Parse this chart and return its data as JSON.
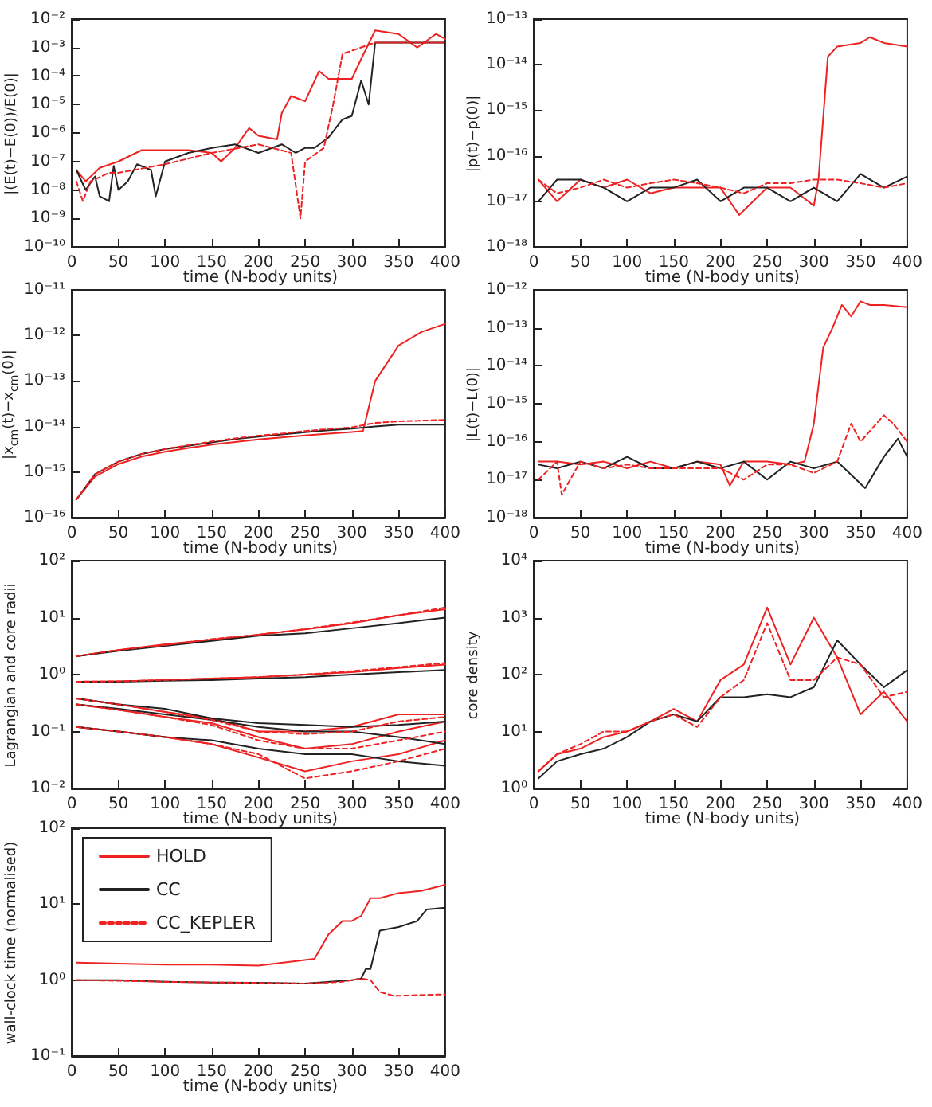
{
  "chart_data": [
    {
      "type": "line",
      "xlabel": "time (N-body units)",
      "ylabel": "|(E(t)−E(0))/E(0)|",
      "log": "y",
      "marker": "none",
      "xlim": [
        0,
        400
      ],
      "xticks": [
        0,
        50,
        100,
        150,
        200,
        250,
        300,
        350,
        400
      ],
      "ylim": [
        1e-10,
        0.01
      ],
      "yticks": [
        {
          "value": 1e-10,
          "label": "10⁻¹⁰"
        },
        {
          "value": 1e-09,
          "label": "10⁻⁹"
        },
        {
          "value": 1e-08,
          "label": "10⁻⁸"
        },
        {
          "value": 1e-07,
          "label": "10⁻⁷"
        },
        {
          "value": 1e-06,
          "label": "10⁻⁶"
        },
        {
          "value": 1e-05,
          "label": "10⁻⁵"
        },
        {
          "value": 0.0001,
          "label": "10⁻⁴"
        },
        {
          "value": 0.001,
          "label": "10⁻³"
        },
        {
          "value": 0.01,
          "label": "10⁻²"
        }
      ],
      "series": [
        {
          "color": "#ee2222",
          "line_style": "solid",
          "x": [
            5,
            15,
            30,
            50,
            75,
            100,
            125,
            150,
            160,
            175,
            190,
            200,
            220,
            225,
            235,
            250,
            265,
            275,
            300,
            310,
            325,
            350,
            370,
            390,
            400
          ],
          "values": [
            5e-08,
            2e-08,
            6e-08,
            1e-07,
            2.5e-07,
            2.5e-07,
            2.5e-07,
            2e-07,
            1e-07,
            3e-07,
            1.5e-06,
            8e-07,
            6e-07,
            5e-06,
            2e-05,
            1.3e-05,
            0.00015,
            8e-05,
            8e-05,
            0.0004,
            0.004,
            0.003,
            0.001,
            0.003,
            0.002
          ]
        },
        {
          "color": "#222222",
          "line_style": "solid",
          "x": [
            5,
            15,
            25,
            30,
            40,
            45,
            50,
            60,
            70,
            85,
            90,
            100,
            125,
            150,
            175,
            200,
            225,
            240,
            250,
            260,
            275,
            290,
            300,
            310,
            318,
            325,
            350,
            400
          ],
          "values": [
            5e-08,
            1e-08,
            3e-08,
            6e-09,
            4e-09,
            7e-08,
            1e-08,
            2e-08,
            8e-08,
            5e-08,
            6e-09,
            1e-07,
            2e-07,
            3e-07,
            4e-07,
            2e-07,
            4e-07,
            2e-07,
            3e-07,
            3e-07,
            7e-07,
            3e-06,
            4e-06,
            7e-05,
            1e-05,
            0.0015,
            0.0015,
            0.0015
          ]
        },
        {
          "color": "#ee2222",
          "line_style": "dashed",
          "x": [
            5,
            12,
            20,
            40,
            50,
            100,
            150,
            200,
            235,
            245,
            250,
            270,
            280,
            290,
            325,
            350,
            400
          ],
          "values": [
            2e-08,
            4e-09,
            2e-08,
            4e-08,
            4e-08,
            8e-08,
            2e-07,
            4e-07,
            2e-07,
            1e-09,
            1e-07,
            3e-07,
            1e-05,
            0.0006,
            0.0015,
            0.0015,
            0.0015
          ]
        }
      ]
    },
    {
      "type": "line",
      "xlabel": "time (N-body units)",
      "ylabel": "|p(t)−p(0)|",
      "log": "y",
      "marker": "none",
      "x": [
        5,
        25,
        50,
        75,
        100,
        125,
        150,
        175,
        200,
        225,
        250,
        275,
        300,
        325,
        350,
        375,
        400
      ],
      "xlim": [
        0,
        400
      ],
      "xticks": [
        0,
        50,
        100,
        150,
        200,
        250,
        300,
        350,
        400
      ],
      "ylim": [
        1e-18,
        1e-13
      ],
      "yticks": [
        {
          "value": 1e-18,
          "label": "10⁻¹⁸"
        },
        {
          "value": 1e-17,
          "label": "10⁻¹⁷"
        },
        {
          "value": 1e-16,
          "label": "10⁻¹⁶"
        },
        {
          "value": 1e-15,
          "label": "10⁻¹⁵"
        },
        {
          "value": 1e-14,
          "label": "10⁻¹⁴"
        },
        {
          "value": 1e-13,
          "label": "10⁻¹³"
        }
      ],
      "series": [
        {
          "color": "#ee2222",
          "line_style": "solid",
          "x": [
            5,
            25,
            50,
            75,
            100,
            125,
            150,
            175,
            200,
            220,
            250,
            275,
            300,
            305,
            315,
            325,
            350,
            360,
            375,
            400
          ],
          "values": [
            3e-17,
            1e-17,
            3e-17,
            2e-17,
            3e-17,
            1.5e-17,
            2e-17,
            2e-17,
            2e-17,
            5e-18,
            2e-17,
            2e-17,
            8e-18,
            3e-17,
            1.5e-14,
            2.5e-14,
            3e-14,
            4e-14,
            3e-14,
            2.5e-14
          ]
        },
        {
          "color": "#222222",
          "line_style": "solid",
          "values": [
            1e-17,
            3e-17,
            3e-17,
            2e-17,
            1e-17,
            2e-17,
            2e-17,
            3e-17,
            1e-17,
            2e-17,
            2e-17,
            1e-17,
            2e-17,
            1e-17,
            4e-17,
            2e-17,
            3.5e-17
          ]
        },
        {
          "color": "#ee2222",
          "line_style": "dashed",
          "values": [
            3e-17,
            1.5e-17,
            2e-17,
            3e-17,
            2e-17,
            2.5e-17,
            3e-17,
            2.5e-17,
            2e-17,
            1.5e-17,
            2.5e-17,
            2.5e-17,
            3e-17,
            3e-17,
            2.5e-17,
            2e-17,
            2.5e-17
          ]
        }
      ]
    },
    {
      "type": "line",
      "xlabel": "time (N-body units)",
      "ylabel": "|x$_{cm}$(t)−x$_{cm}$(0)|",
      "log": "y",
      "marker": "none",
      "x": [
        5,
        25,
        50,
        75,
        100,
        125,
        150,
        175,
        200,
        225,
        250,
        275,
        300,
        325,
        350,
        375,
        400
      ],
      "xlim": [
        0,
        400
      ],
      "xticks": [
        0,
        50,
        100,
        150,
        200,
        250,
        300,
        350,
        400
      ],
      "ylim": [
        1e-16,
        1e-11
      ],
      "yticks": [
        {
          "value": 1e-16,
          "label": "10⁻¹⁶"
        },
        {
          "value": 1e-15,
          "label": "10⁻¹⁵"
        },
        {
          "value": 1e-14,
          "label": "10⁻¹⁴"
        },
        {
          "value": 1e-13,
          "label": "10⁻¹³"
        },
        {
          "value": 1e-12,
          "label": "10⁻¹²"
        },
        {
          "value": 1e-11,
          "label": "10⁻¹¹"
        }
      ],
      "series": [
        {
          "color": "#ee2222",
          "line_style": "solid",
          "x": [
            5,
            25,
            50,
            75,
            100,
            125,
            150,
            175,
            200,
            225,
            250,
            275,
            300,
            312,
            325,
            350,
            375,
            400
          ],
          "values": [
            2.5e-16,
            8e-16,
            1.5e-15,
            2.2e-15,
            2.8e-15,
            3.4e-15,
            4e-15,
            4.6e-15,
            5.2e-15,
            5.8e-15,
            6.4e-15,
            7e-15,
            7.6e-15,
            8e-15,
            1e-13,
            6e-13,
            1.2e-12,
            1.8e-12
          ]
        },
        {
          "color": "#222222",
          "line_style": "solid",
          "values": [
            2.5e-16,
            9e-16,
            1.7e-15,
            2.5e-15,
            3.2e-15,
            3.8e-15,
            4.5e-15,
            5.3e-15,
            6e-15,
            6.7e-15,
            7.5e-15,
            8.3e-15,
            9e-15,
            1e-14,
            1.1e-14,
            1.1e-14,
            1.1e-14
          ]
        },
        {
          "color": "#ee2222",
          "line_style": "dashed",
          "values": [
            2.5e-16,
            9e-16,
            1.7e-15,
            2.5e-15,
            3.2e-15,
            3.9e-15,
            4.7e-15,
            5.5e-15,
            6.3e-15,
            7e-15,
            8e-15,
            8.8e-15,
            9.6e-15,
            1.2e-14,
            1.3e-14,
            1.35e-14,
            1.4e-14
          ]
        }
      ]
    },
    {
      "type": "line",
      "xlabel": "time (N-body units)",
      "ylabel": "|L(t)−L(0)|",
      "log": "y",
      "marker": "none",
      "xlim": [
        0,
        400
      ],
      "xticks": [
        0,
        50,
        100,
        150,
        200,
        250,
        300,
        350,
        400
      ],
      "ylim": [
        1e-18,
        1e-12
      ],
      "yticks": [
        {
          "value": 1e-18,
          "label": "10⁻¹⁸"
        },
        {
          "value": 1e-17,
          "label": "10⁻¹⁷"
        },
        {
          "value": 1e-16,
          "label": "10⁻¹⁶"
        },
        {
          "value": 1e-15,
          "label": "10⁻¹⁵"
        },
        {
          "value": 1e-14,
          "label": "10⁻¹⁴"
        },
        {
          "value": 1e-13,
          "label": "10⁻¹³"
        },
        {
          "value": 1e-12,
          "label": "10⁻¹²"
        }
      ],
      "series": [
        {
          "color": "#ee2222",
          "line_style": "solid",
          "x": [
            5,
            25,
            50,
            75,
            100,
            125,
            150,
            175,
            200,
            210,
            225,
            250,
            275,
            290,
            300,
            310,
            320,
            330,
            340,
            350,
            360,
            375,
            400
          ],
          "values": [
            3e-17,
            3e-17,
            2.5e-17,
            3e-17,
            2e-17,
            3e-17,
            2e-17,
            3e-17,
            2.5e-17,
            7e-18,
            3e-17,
            3e-17,
            2.5e-17,
            3e-17,
            3e-16,
            3e-14,
            1e-13,
            4e-13,
            2e-13,
            5e-13,
            4e-13,
            4e-13,
            3.5e-13
          ]
        },
        {
          "color": "#222222",
          "line_style": "solid",
          "x": [
            5,
            25,
            50,
            75,
            100,
            125,
            150,
            175,
            200,
            225,
            250,
            275,
            300,
            325,
            355,
            375,
            390,
            400
          ],
          "values": [
            2.5e-17,
            2e-17,
            3e-17,
            2e-17,
            4e-17,
            2e-17,
            2e-17,
            3e-17,
            2e-17,
            3e-17,
            1e-17,
            3e-17,
            2e-17,
            3e-17,
            6e-18,
            4e-17,
            1.2e-16,
            4e-17
          ]
        },
        {
          "color": "#ee2222",
          "line_style": "dashed",
          "x": [
            5,
            25,
            30,
            50,
            75,
            100,
            125,
            150,
            175,
            200,
            225,
            250,
            275,
            300,
            325,
            340,
            350,
            375,
            385,
            400
          ],
          "values": [
            1e-17,
            3e-17,
            4e-18,
            3e-17,
            2e-17,
            2.5e-17,
            2e-17,
            2e-17,
            2e-17,
            2e-17,
            1e-17,
            2.5e-17,
            2.5e-17,
            1.5e-17,
            3e-17,
            3e-16,
            1e-16,
            5e-16,
            3e-16,
            1e-16
          ]
        }
      ]
    },
    {
      "type": "line",
      "xlabel": "time (N-body units)",
      "ylabel": "Lagrangian and core radii",
      "log": "y",
      "marker": "none",
      "x": [
        5,
        50,
        100,
        150,
        200,
        250,
        300,
        350,
        400
      ],
      "xlim": [
        0,
        400
      ],
      "xticks": [
        0,
        50,
        100,
        150,
        200,
        250,
        300,
        350,
        400
      ],
      "ylim": [
        0.01,
        100
      ],
      "yticks": [
        {
          "value": 0.01,
          "label": "10⁻²"
        },
        {
          "value": 0.1,
          "label": "10⁻¹"
        },
        {
          "value": 1,
          "label": "10⁰"
        },
        {
          "value": 10,
          "label": "10¹"
        },
        {
          "value": 100,
          "label": "10²"
        }
      ],
      "series": [
        {
          "color": "#ee2222",
          "line_style": "solid",
          "values": [
            2.1,
            2.7,
            3.4,
            4.1,
            5,
            6.2,
            8,
            11,
            14
          ]
        },
        {
          "color": "#ee2222",
          "line_style": "solid",
          "values": [
            0.75,
            0.76,
            0.8,
            0.85,
            0.9,
            1,
            1.1,
            1.3,
            1.5
          ]
        },
        {
          "color": "#ee2222",
          "line_style": "solid",
          "values": [
            0.38,
            0.3,
            0.22,
            0.17,
            0.1,
            0.1,
            0.12,
            0.2,
            0.2
          ]
        },
        {
          "color": "#ee2222",
          "line_style": "solid",
          "values": [
            0.3,
            0.24,
            0.18,
            0.14,
            0.08,
            0.05,
            0.06,
            0.1,
            0.15
          ]
        },
        {
          "color": "#ee2222",
          "line_style": "solid",
          "values": [
            0.12,
            0.1,
            0.08,
            0.06,
            0.035,
            0.02,
            0.03,
            0.04,
            0.07
          ]
        },
        {
          "color": "#ee2222",
          "line_style": "dashed",
          "values": [
            2.1,
            2.7,
            3.3,
            4.2,
            5,
            6.3,
            8.2,
            11,
            15
          ]
        },
        {
          "color": "#ee2222",
          "line_style": "dashed",
          "values": [
            0.75,
            0.76,
            0.8,
            0.85,
            0.9,
            1,
            1.15,
            1.35,
            1.6
          ]
        },
        {
          "color": "#ee2222",
          "line_style": "dashed",
          "values": [
            0.38,
            0.3,
            0.22,
            0.16,
            0.1,
            0.09,
            0.1,
            0.15,
            0.18
          ]
        },
        {
          "color": "#ee2222",
          "line_style": "dashed",
          "values": [
            0.3,
            0.24,
            0.18,
            0.13,
            0.07,
            0.05,
            0.05,
            0.07,
            0.1
          ]
        },
        {
          "color": "#ee2222",
          "line_style": "dashed",
          "values": [
            0.12,
            0.1,
            0.08,
            0.06,
            0.04,
            0.015,
            0.02,
            0.03,
            0.05
          ]
        },
        {
          "color": "#222222",
          "line_style": "solid",
          "values": [
            2.1,
            2.6,
            3.2,
            3.9,
            4.8,
            5.3,
            6.5,
            8,
            10
          ]
        },
        {
          "color": "#222222",
          "line_style": "solid",
          "values": [
            0.75,
            0.75,
            0.78,
            0.8,
            0.85,
            0.9,
            1,
            1.1,
            1.2
          ]
        },
        {
          "color": "#222222",
          "line_style": "solid",
          "values": [
            0.38,
            0.3,
            0.25,
            0.17,
            0.14,
            0.13,
            0.12,
            0.13,
            0.15
          ]
        },
        {
          "color": "#222222",
          "line_style": "solid",
          "values": [
            0.3,
            0.25,
            0.2,
            0.16,
            0.12,
            0.1,
            0.1,
            0.08,
            0.06
          ]
        },
        {
          "color": "#222222",
          "line_style": "solid",
          "values": [
            0.12,
            0.1,
            0.08,
            0.07,
            0.05,
            0.04,
            0.04,
            0.03,
            0.025
          ]
        }
      ]
    },
    {
      "type": "line",
      "xlabel": "time (N-body units)",
      "ylabel": "core density",
      "log": "y",
      "marker": "none",
      "x": [
        5,
        25,
        50,
        75,
        100,
        125,
        150,
        175,
        200,
        225,
        250,
        275,
        300,
        325,
        350,
        375,
        400
      ],
      "xlim": [
        0,
        400
      ],
      "xticks": [
        0,
        50,
        100,
        150,
        200,
        250,
        300,
        350,
        400
      ],
      "ylim": [
        1,
        10000
      ],
      "yticks": [
        {
          "value": 1,
          "label": "10⁰"
        },
        {
          "value": 10,
          "label": "10¹"
        },
        {
          "value": 100,
          "label": "10²"
        },
        {
          "value": 1000,
          "label": "10³"
        },
        {
          "value": 10000,
          "label": "10⁴"
        }
      ],
      "series": [
        {
          "color": "#ee2222",
          "line_style": "solid",
          "values": [
            2,
            4,
            5,
            8,
            10,
            15,
            25,
            15,
            80,
            150,
            1500,
            150,
            1000,
            200,
            20,
            50,
            15
          ]
        },
        {
          "color": "#222222",
          "line_style": "solid",
          "values": [
            1.5,
            3,
            4,
            5,
            8,
            15,
            20,
            15,
            40,
            40,
            45,
            40,
            60,
            400,
            150,
            60,
            120
          ]
        },
        {
          "color": "#ee2222",
          "line_style": "dashed",
          "values": [
            2,
            4,
            6,
            10,
            10,
            15,
            20,
            12,
            40,
            80,
            800,
            80,
            80,
            200,
            150,
            40,
            50
          ]
        }
      ]
    },
    {
      "type": "line",
      "xlabel": "time (N-body units)",
      "ylabel": "wall-clock time (normalised)",
      "log": "y",
      "marker": "none",
      "legend": "top left",
      "xlim": [
        0,
        400
      ],
      "xticks": [
        0,
        50,
        100,
        150,
        200,
        250,
        300,
        350,
        400
      ],
      "ylim": [
        0.1,
        100
      ],
      "yticks": [
        {
          "value": 0.1,
          "label": "10⁻¹"
        },
        {
          "value": 1,
          "label": "10⁰"
        },
        {
          "value": 10,
          "label": "10¹"
        },
        {
          "value": 100,
          "label": "10²"
        }
      ],
      "series": [
        {
          "name": "HOLD",
          "color": "#ee2222",
          "line_style": "solid",
          "x": [
            5,
            50,
            100,
            150,
            200,
            260,
            275,
            290,
            300,
            310,
            320,
            330,
            350,
            375,
            400
          ],
          "values": [
            1.7,
            1.65,
            1.6,
            1.6,
            1.55,
            1.9,
            4,
            6,
            6,
            7,
            12,
            12,
            14,
            15,
            18
          ]
        },
        {
          "name": "CC",
          "color": "#222222",
          "line_style": "solid",
          "x": [
            5,
            50,
            100,
            150,
            200,
            250,
            300,
            310,
            315,
            320,
            330,
            350,
            370,
            380,
            400
          ],
          "values": [
            1,
            1,
            0.95,
            0.93,
            0.92,
            0.9,
            1,
            1.05,
            1.4,
            1.4,
            4.5,
            5,
            6,
            8.5,
            9
          ]
        },
        {
          "name": "CC_KEPLER",
          "color": "#ee2222",
          "line_style": "dashed",
          "x": [
            5,
            50,
            100,
            150,
            200,
            250,
            290,
            310,
            320,
            330,
            345,
            400
          ],
          "values": [
            1,
            0.98,
            0.95,
            0.93,
            0.92,
            0.9,
            0.95,
            1.05,
            1,
            0.7,
            0.62,
            0.65
          ]
        }
      ]
    }
  ]
}
